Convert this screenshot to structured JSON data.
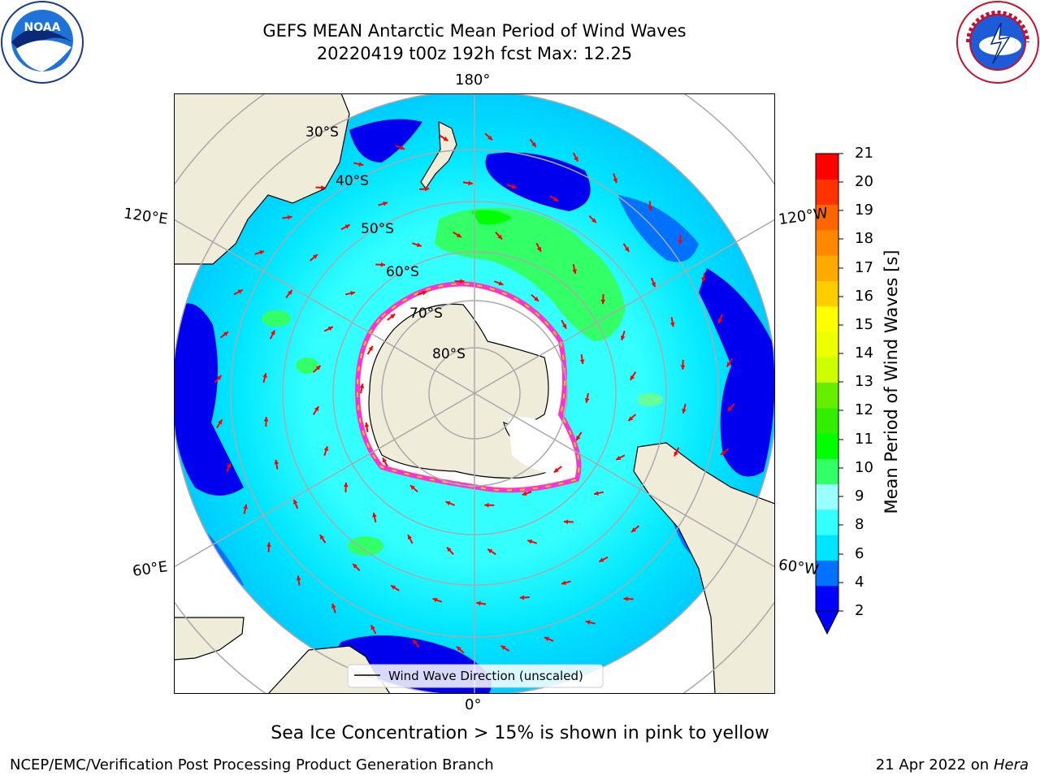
{
  "header": {
    "title_line1": "GEFS MEAN Antarctic Mean Period of Wind Waves",
    "title_line2": "20220419 t00z 192h fcst   Max: 12.25"
  },
  "logos": {
    "left_icon": "noaa-logo",
    "right_icon": "nws-logo"
  },
  "map": {
    "projection": "south-polar-stereographic",
    "longitude_labels": {
      "top": "180°",
      "bottom": "0°",
      "upper_left": "120°E",
      "upper_right": "120°W",
      "lower_left": "60°E",
      "lower_right": "60°W"
    },
    "latitude_labels": [
      "30°S",
      "40°S",
      "50°S",
      "60°S",
      "70°S",
      "80°S"
    ],
    "legend_label": "Wind Wave Direction (unscaled)",
    "arrow_color": "#ff0000"
  },
  "colorbar": {
    "title": "Mean Period of Wind Waves [s]",
    "tick_labels": [
      "21",
      "20",
      "19",
      "18",
      "17",
      "16",
      "15",
      "14",
      "13",
      "12",
      "11",
      "10",
      "9",
      "8",
      "6",
      "4",
      "2"
    ],
    "colors": [
      "#0000ff",
      "#0072ff",
      "#00e5ff",
      "#33ffff",
      "#99ffff",
      "#33ff66",
      "#00ff00",
      "#33ee00",
      "#66ee00",
      "#ccff00",
      "#eeff00",
      "#ffff00",
      "#ffcc00",
      "#ffaa00",
      "#ff8800",
      "#ff6600",
      "#ff3300",
      "#ff0000"
    ]
  },
  "footer": {
    "subtitle": "Sea Ice Concentration > 15% is shown in pink to yellow",
    "credit": "NCEP/EMC/Verification Post Processing Product Generation Branch",
    "datestamp_prefix": "21 Apr 2022 on ",
    "datestamp_machine": "Hera"
  }
}
